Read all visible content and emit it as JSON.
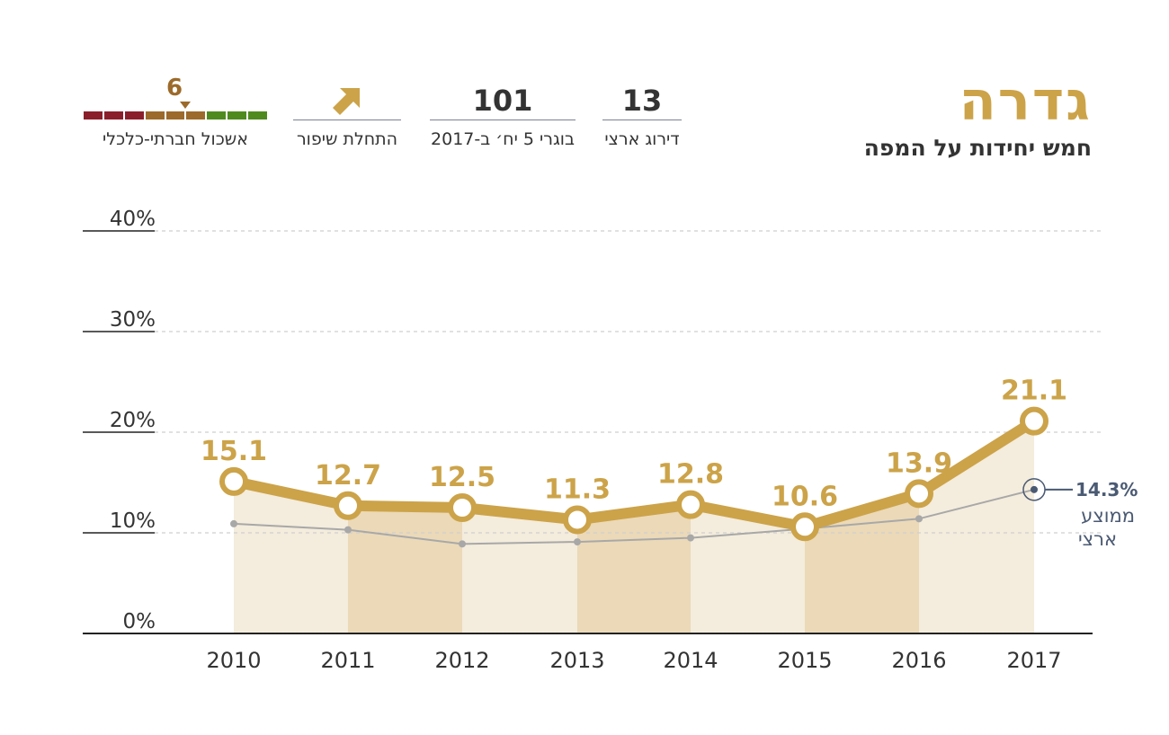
{
  "header": {
    "city": "גדרה",
    "subtitle": "חמש יחידות על המפה"
  },
  "stats": {
    "rank_value": "13",
    "rank_label": "דירוג ארצי",
    "grads_value": "101",
    "grads_label": "בוגרי 5 יח׳ ב-2017",
    "trend_label": "התחלת שיפור",
    "trend_icon": "arrow-up-right-icon",
    "cluster_value": "6",
    "cluster_label": "אשכול חברתי-כלכלי",
    "cluster_scale_colors": [
      "#8a1f2b",
      "#8a1f2b",
      "#8a1f2b",
      "#9c6a2a",
      "#9c6a2a",
      "#9c6a2a",
      "#4f8a1f",
      "#4f8a1f",
      "#4f8a1f"
    ],
    "cluster_selected_index": 5
  },
  "chart_data": {
    "type": "line",
    "categories": [
      "2010",
      "2011",
      "2012",
      "2013",
      "2014",
      "2015",
      "2016",
      "2017"
    ],
    "ylim": [
      0,
      40
    ],
    "yticks": [
      "0%",
      "10%",
      "20%",
      "30%",
      "40%"
    ],
    "series": [
      {
        "values": [
          15.1,
          12.7,
          12.5,
          11.3,
          12.8,
          10.6,
          13.9,
          21.1
        ],
        "labels": [
          "15.1",
          "12.7",
          "12.5",
          "11.3",
          "12.8",
          "10.6",
          "13.9",
          "21.1"
        ],
        "color": "#cca349"
      },
      {
        "name": "ממוצע ארצי",
        "values": [
          10.9,
          10.3,
          8.9,
          9.1,
          9.5,
          10.4,
          11.4,
          14.3
        ],
        "color": "#a8a8a8"
      }
    ],
    "national_label_value": "14.3%",
    "national_label_line1": "ממוצע",
    "national_label_line2": "ארצי",
    "grid": true,
    "colors": {
      "accent": "#cca349",
      "band_dark": "#ebd9b8",
      "band_light": "#f4ecdc",
      "national_text": "#4a5a73",
      "axis": "#222222",
      "grid": "#cfcfcf"
    }
  }
}
